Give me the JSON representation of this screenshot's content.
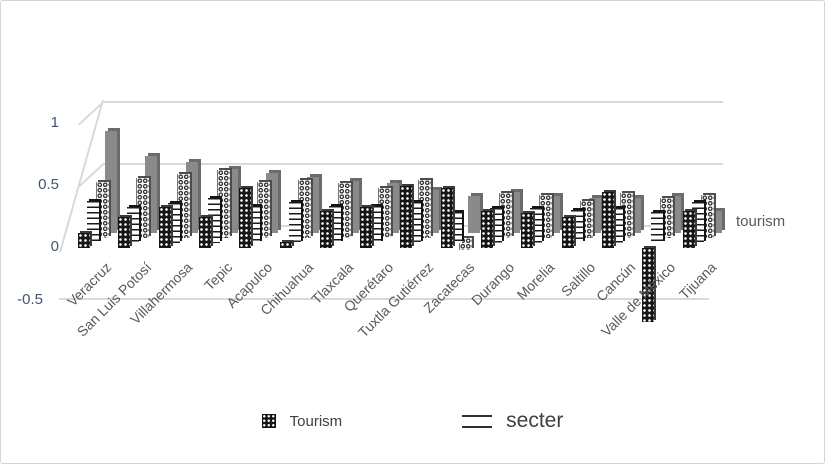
{
  "chart_data": {
    "type": "bar",
    "style": "3d-clustered-bw-patterns",
    "title": "",
    "categories": [
      "Veracruz",
      "San Luis Potosí",
      "Villahermosa",
      "Tepic",
      "Acapulco",
      "Chihuahua",
      "Tlaxcala",
      "Querétaro",
      "Tuxtla Gutiérrez",
      "Zacatecas",
      "Durango",
      "Morelia",
      "Saltillo",
      "Cancún",
      "Valle de México",
      "Tijuana"
    ],
    "series": [
      {
        "name": "Tourism",
        "pattern": "dots",
        "values": [
          0.12,
          0.25,
          0.33,
          0.25,
          0.48,
          0.05,
          0.3,
          0.33,
          0.5,
          0.48,
          0.3,
          0.28,
          0.25,
          0.45,
          -0.6,
          0.3
        ]
      },
      {
        "name": "secter",
        "pattern": "lines",
        "values": [
          0.34,
          0.29,
          0.32,
          0.36,
          0.3,
          0.33,
          0.3,
          0.3,
          0.33,
          0.25,
          0.28,
          0.28,
          0.27,
          0.28,
          0.25,
          0.33
        ]
      },
      {
        "name": "",
        "pattern": "check",
        "values": [
          0.45,
          0.48,
          0.52,
          0.55,
          0.45,
          0.47,
          0.44,
          0.4,
          0.47,
          -0.1,
          0.36,
          0.35,
          0.3,
          0.36,
          0.32,
          0.35
        ]
      },
      {
        "name": "",
        "pattern": "gray",
        "values": [
          0.82,
          0.62,
          0.57,
          0.52,
          0.48,
          0.45,
          0.42,
          0.4,
          0.35,
          0.3,
          0.33,
          0.3,
          0.28,
          0.28,
          0.3,
          0.18
        ]
      }
    ],
    "ylim": [
      -0.5,
      1
    ],
    "yticks": [
      {
        "label": "1",
        "value": 1
      },
      {
        "label": "0.5",
        "value": 0.5
      },
      {
        "label": "0",
        "value": 0
      },
      {
        "label": "-0.5",
        "value": -0.5
      }
    ],
    "grid": true,
    "depth_axis_label": "tourism",
    "legend": [
      {
        "label": "Tourism",
        "swatch": "dots"
      },
      {
        "label": "secter",
        "swatch": "lines"
      }
    ],
    "colors": {
      "bar_gray": "#8a8a8a",
      "bar_dark": "#161616",
      "gridline": "#d9d9d9",
      "tick_text": "#44546a",
      "label_text": "#595959"
    }
  }
}
